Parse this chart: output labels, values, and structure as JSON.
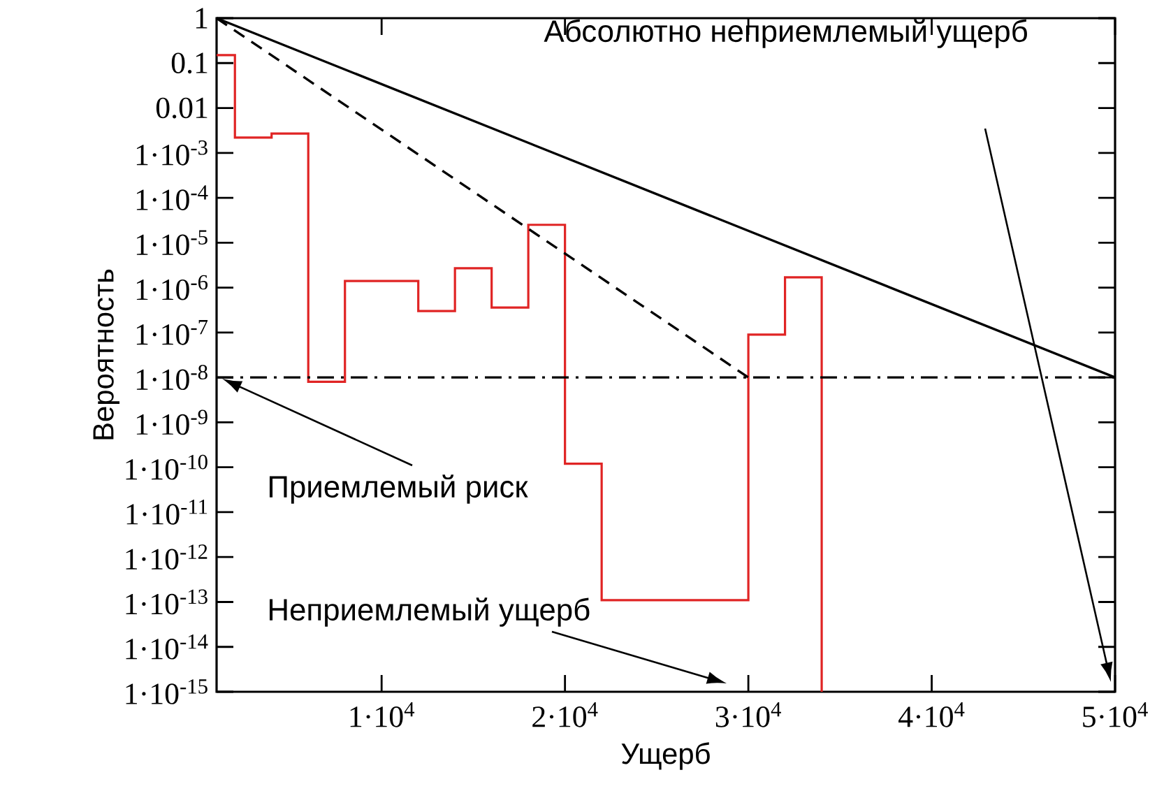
{
  "chart_data": {
    "type": "histogram",
    "xlabel": "Ущерб",
    "ylabel": "Вероятность",
    "log": "y",
    "xlim": [
      1000,
      50000
    ],
    "ylim": [
      1e-15,
      1
    ],
    "xticks": [
      {
        "value": 10000,
        "label": "1·10$^{4}$"
      },
      {
        "value": 20000,
        "label": "2·10$^{4}$"
      },
      {
        "value": 30000,
        "label": "3·10$^{4}$"
      },
      {
        "value": 40000,
        "label": "4·10$^{4}$"
      },
      {
        "value": 50000,
        "label": "5·10$^{4}$"
      }
    ],
    "yticks": [
      1,
      0.1,
      0.01,
      {
        "value": 0.001,
        "label": "1·10$^{-3}$"
      },
      {
        "value": 0.0001,
        "label": "1·10$^{-4}$"
      },
      {
        "value": 1e-05,
        "label": "1·10$^{-5}$"
      },
      {
        "value": 1e-06,
        "label": "1·10$^{-6}$"
      },
      {
        "value": 1e-07,
        "label": "1·10$^{-7}$"
      },
      {
        "value": 1e-08,
        "label": "1·10$^{-8}$"
      },
      {
        "value": 1e-09,
        "label": "1·10$^{-9}$"
      },
      {
        "value": 1e-10,
        "label": "1·10$^{-10}$"
      },
      {
        "value": 1e-11,
        "label": "1·10$^{-11}$"
      },
      {
        "value": 1e-12,
        "label": "1·10$^{-12}$"
      },
      {
        "value": 1e-13,
        "label": "1·10$^{-13}$"
      },
      {
        "value": 1e-14,
        "label": "1·10$^{-14}$"
      },
      {
        "value": 1e-15,
        "label": "1·10$^{-15}$"
      }
    ],
    "grid": false,
    "series": [
      {
        "type": "histogram",
        "color": "#e02424",
        "bins": [
          1000,
          2000,
          4000,
          6000,
          8000,
          12000,
          14000,
          16000,
          18000,
          20000,
          22000,
          30000,
          32000,
          34000
        ],
        "values": [
          0.15,
          0.0022,
          0.0027,
          8e-09,
          1.4e-06,
          3e-07,
          2.7e-06,
          3.6e-07,
          2.5e-05,
          1.2e-10,
          1.1e-13,
          9e-08,
          1.7e-06
        ]
      },
      {
        "type": "line",
        "color": "#000000",
        "line_style": "solid",
        "x": [
          1000,
          50000
        ],
        "values": [
          1,
          1e-08
        ]
      },
      {
        "type": "line",
        "color": "#000000",
        "line_style": "dashed",
        "x": [
          1000,
          30000
        ],
        "values": [
          1,
          1e-08
        ]
      }
    ],
    "ref_lines": [
      {
        "axis": "y",
        "value": 1e-08,
        "color": "#000000",
        "line_style": "dashdot"
      }
    ],
    "annotations": [
      "Абсолютно неприемлемый ущерб",
      "Приемлемый риск",
      "Неприемлемый ущерб"
    ]
  }
}
